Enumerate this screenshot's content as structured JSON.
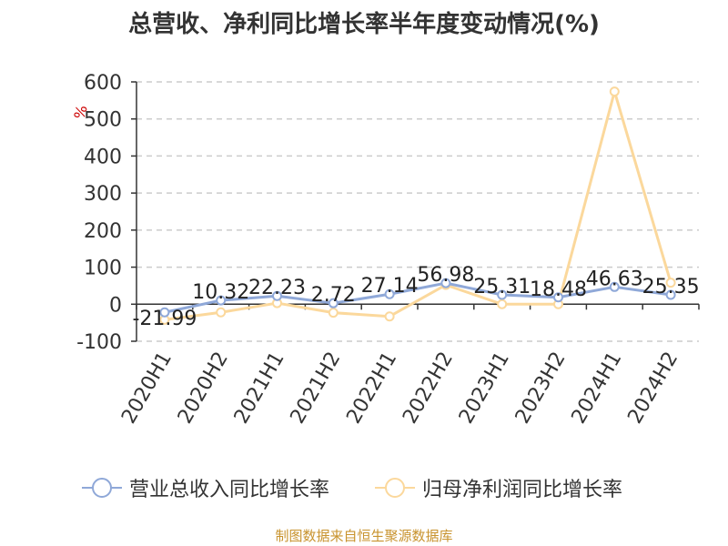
{
  "title": "总营收、净利同比增长率半年度变动情况(%)",
  "source_note": "制图数据来自恒生聚源数据库",
  "colors": {
    "revenue": "#8fa8d8",
    "profit": "#fbd89c",
    "grid": "#cccccc",
    "axis": "#333333",
    "unit": "#cc0000"
  },
  "chart_data": {
    "type": "line",
    "title": "总营收、净利同比增长率半年度变动情况(%)",
    "ylabel": "%",
    "ylim": [
      -100,
      600
    ],
    "yticks": [
      -100,
      0,
      100,
      200,
      300,
      400,
      500,
      600
    ],
    "grid": true,
    "legend": "bottom",
    "categories": [
      "2020H1",
      "2020H2",
      "2021H1",
      "2021H2",
      "2022H1",
      "2022H2",
      "2023H1",
      "2023H2",
      "2024H1",
      "2024H2"
    ],
    "series": [
      {
        "name": "营业总收入同比增长率",
        "values": [
          -21.99,
          10.32,
          22.23,
          2.72,
          27.14,
          56.98,
          25.31,
          18.48,
          46.63,
          25.35
        ],
        "labels": [
          "-21.99",
          "10.32",
          "22.23",
          "2.72",
          "27.14",
          "56.98",
          "25.31",
          "18.48",
          "46.63",
          "25.35"
        ]
      },
      {
        "name": "归母净利润同比增长率",
        "values": [
          -42,
          -22,
          3,
          -23,
          -33,
          52,
          0,
          0,
          574,
          58
        ]
      }
    ]
  }
}
